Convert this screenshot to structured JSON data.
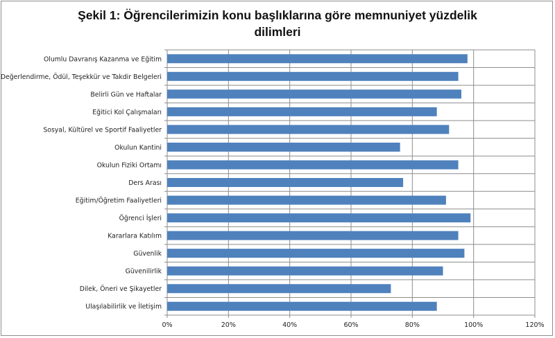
{
  "chart_data": {
    "type": "bar",
    "orientation": "horizontal",
    "title_line1": "Şekil 1: Öğrencilerimizin konu başlıklarına göre  memnuniyet yüzdelik",
    "title_line2": "dilimleri",
    "categories": [
      "Olumlu Davranış Kazanma ve Eğitim",
      "Değerlendirme, Ödül, Teşekkür ve Takdir Belgeleri",
      "Belirli Gün ve Haftalar",
      "Eğitici Kol Çalışmaları",
      "Sosyal, Kültürel ve Sportif Faaliyetler",
      "Okulun Kantini",
      "Okulun  Fiziki Ortamı",
      "Ders Arası",
      "Eğitim/Öğretim Faaliyetleri",
      "Öğrenci İşleri",
      "Kararlara Katılım",
      "Güvenlik",
      "Güvenilirlik",
      "Dilek, Öneri ve Şikayetler",
      "Ulaşılabilirlik ve  İletişim"
    ],
    "values": [
      98,
      95,
      96,
      88,
      92,
      76,
      95,
      77,
      91,
      99,
      95,
      97,
      90,
      73,
      88
    ],
    "xticks": [
      "0%",
      "20%",
      "40%",
      "60%",
      "80%",
      "100%",
      "120%"
    ],
    "xlim": [
      0,
      120
    ],
    "xlabel": "",
    "ylabel": "",
    "grid": true,
    "legend": "none",
    "bar_color": "#4f81bd"
  }
}
